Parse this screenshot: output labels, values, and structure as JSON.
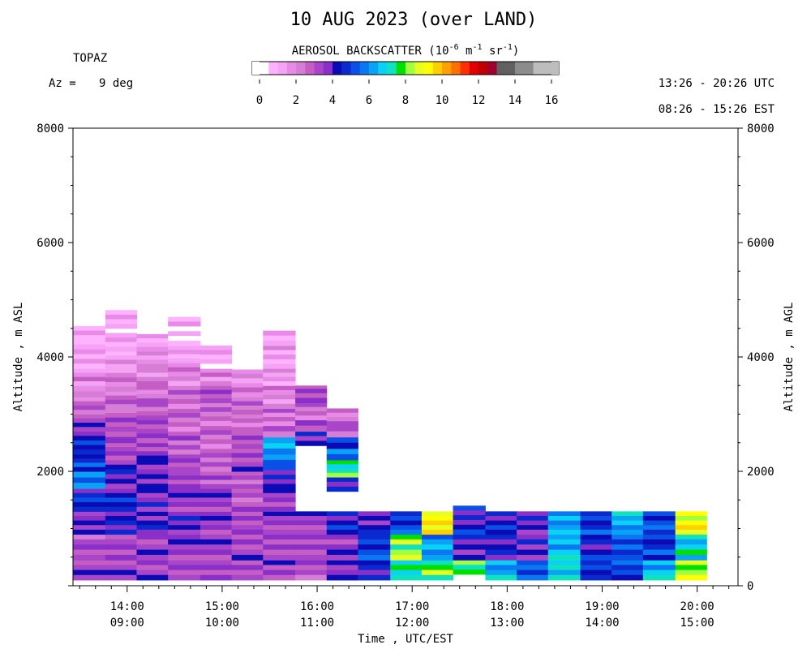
{
  "header": {
    "title": "10 AUG 2023 (over LAND)",
    "instrument": "TOPAZ",
    "azimuth_label": "Az =",
    "azimuth_value": "9 deg",
    "utc_range": "13:26 - 20:26 UTC",
    "est_range": "08:26 - 15:26 EST"
  },
  "colorbar": {
    "title_main": "AEROSOL BACKSCATTER (10",
    "title_exp1": "-6",
    "title_unit_m": " m",
    "title_exp2": "-1",
    "title_unit_sr": " sr",
    "title_exp3": "-1",
    "title_close": ")",
    "tick_labels": [
      "0",
      "2",
      "4",
      "6",
      "8",
      "10",
      "12",
      "14",
      "16"
    ],
    "colors": [
      "#ffffff",
      "#ffb3ff",
      "#f5a3f5",
      "#e88ae8",
      "#d67ed6",
      "#c45ec4",
      "#a845c8",
      "#8a2fc8",
      "#0b0bb5",
      "#0a2ad0",
      "#0b50e6",
      "#0a78f0",
      "#0aa2f5",
      "#0ad2f5",
      "#10e2c0",
      "#00e000",
      "#a0ff40",
      "#e6ff20",
      "#ffff00",
      "#ffd000",
      "#ffa000",
      "#ff7000",
      "#ff3000",
      "#e00000",
      "#c00000",
      "#a00030",
      "#606060",
      "#606060",
      "#8c8c8c",
      "#8c8c8c",
      "#bdbdbd",
      "#bdbdbd"
    ]
  },
  "chart_data": {
    "type": "heatmap",
    "title": "10 AUG 2023 (over LAND)",
    "xlabel": "Time , UTC/EST",
    "ylabel_left": "Altitude , m ASL",
    "ylabel_right": "Altitude , m AGL",
    "x_unit": "hours UTC",
    "xlim": [
      13.43,
      20.43
    ],
    "ylim": [
      0,
      8000
    ],
    "yticks_left": [
      2000,
      4000,
      6000,
      8000
    ],
    "yticks_right": [
      0,
      2000,
      4000,
      6000,
      8000
    ],
    "xticks": [
      {
        "utc": "14:00",
        "est": "09:00",
        "t": 14
      },
      {
        "utc": "15:00",
        "est": "10:00",
        "t": 15
      },
      {
        "utc": "16:00",
        "est": "11:00",
        "t": 16
      },
      {
        "utc": "17:00",
        "est": "12:00",
        "t": 17
      },
      {
        "utc": "18:00",
        "est": "13:00",
        "t": 18
      },
      {
        "utc": "19:00",
        "est": "14:00",
        "t": 19
      },
      {
        "utc": "20:00",
        "est": "15:00",
        "t": 20
      }
    ],
    "columns": [
      {
        "t_start": 13.43,
        "t_end": 13.77,
        "segments": [
          [
            100,
            450,
            3.4
          ],
          [
            450,
            900,
            3.0
          ],
          [
            900,
            1300,
            3.7
          ],
          [
            1300,
            1700,
            4.6
          ],
          [
            1700,
            1900,
            6.0
          ],
          [
            1900,
            2000,
            6.8
          ],
          [
            2000,
            2300,
            4.8
          ],
          [
            2300,
            2700,
            4.4
          ],
          [
            2700,
            3000,
            3.4
          ],
          [
            3000,
            3300,
            2.6
          ],
          [
            3300,
            3500,
            2.3
          ],
          [
            3500,
            3800,
            1.8
          ],
          [
            3800,
            4300,
            1.2
          ],
          [
            4300,
            4620,
            0.9
          ]
        ]
      },
      {
        "t_start": 13.77,
        "t_end": 14.1,
        "segments": [
          [
            100,
            450,
            3.4
          ],
          [
            450,
            900,
            3.2
          ],
          [
            900,
            1300,
            4.2
          ],
          [
            1300,
            1700,
            4.4
          ],
          [
            1700,
            2200,
            4.1
          ],
          [
            2200,
            2500,
            3.2
          ],
          [
            2500,
            2700,
            3.6
          ],
          [
            2700,
            3100,
            2.9
          ],
          [
            3100,
            3400,
            2.6
          ],
          [
            3400,
            3800,
            2.1
          ],
          [
            3800,
            4100,
            1.4
          ],
          [
            4100,
            4500,
            1.1
          ],
          [
            4500,
            4900,
            0.9
          ]
        ]
      },
      {
        "t_start": 14.1,
        "t_end": 14.43,
        "segments": [
          [
            100,
            450,
            3.3
          ],
          [
            450,
            900,
            3.4
          ],
          [
            900,
            1300,
            4.0
          ],
          [
            1300,
            1700,
            3.8
          ],
          [
            1700,
            2200,
            3.7
          ],
          [
            2200,
            2500,
            3.5
          ],
          [
            2500,
            2900,
            3.2
          ],
          [
            2900,
            3200,
            2.7
          ],
          [
            3200,
            3500,
            2.4
          ],
          [
            3500,
            3800,
            2.0
          ],
          [
            3800,
            4100,
            1.7
          ],
          [
            4100,
            4400,
            1.2
          ]
        ]
      },
      {
        "t_start": 14.43,
        "t_end": 14.77,
        "segments": [
          [
            100,
            450,
            3.1
          ],
          [
            450,
            900,
            3.6
          ],
          [
            900,
            1300,
            3.9
          ],
          [
            1300,
            1700,
            3.6
          ],
          [
            1700,
            2000,
            3.2
          ],
          [
            2000,
            2300,
            3.0
          ],
          [
            2300,
            2700,
            2.8
          ],
          [
            2700,
            3100,
            2.6
          ],
          [
            3100,
            3500,
            2.4
          ],
          [
            3500,
            3900,
            1.9
          ],
          [
            3900,
            4200,
            1.1
          ],
          [
            4200,
            4700,
            0.8
          ]
        ]
      },
      {
        "t_start": 14.77,
        "t_end": 15.1,
        "segments": [
          [
            100,
            450,
            3.2
          ],
          [
            450,
            900,
            3.4
          ],
          [
            900,
            1300,
            3.6
          ],
          [
            1300,
            1700,
            3.5
          ],
          [
            1700,
            2000,
            2.8
          ],
          [
            2000,
            2400,
            2.7
          ],
          [
            2400,
            2800,
            2.5
          ],
          [
            2800,
            3200,
            2.4
          ],
          [
            3200,
            3500,
            2.9
          ],
          [
            3500,
            3800,
            1.8
          ],
          [
            3800,
            4200,
            1.1
          ]
        ]
      },
      {
        "t_start": 15.1,
        "t_end": 15.43,
        "segments": [
          [
            100,
            450,
            3.2
          ],
          [
            450,
            900,
            3.3
          ],
          [
            900,
            1300,
            3.2
          ],
          [
            1300,
            1700,
            2.9
          ],
          [
            1700,
            2000,
            3.0
          ],
          [
            2000,
            2400,
            3.3
          ],
          [
            2400,
            2700,
            3.2
          ],
          [
            2700,
            3000,
            2.5
          ],
          [
            3000,
            3300,
            2.8
          ],
          [
            3300,
            3550,
            2.3
          ],
          [
            3550,
            3780,
            2.0
          ]
        ]
      },
      {
        "t_start": 15.43,
        "t_end": 15.77,
        "segments": [
          [
            100,
            450,
            3.3
          ],
          [
            450,
            900,
            3.2
          ],
          [
            900,
            1300,
            3.4
          ],
          [
            1300,
            1700,
            3.5
          ],
          [
            1700,
            2100,
            4.3
          ],
          [
            2100,
            2300,
            5.5
          ],
          [
            2300,
            2500,
            6.0
          ],
          [
            2500,
            2600,
            5.5
          ],
          [
            2600,
            2800,
            2.6
          ],
          [
            2800,
            3100,
            2.3
          ],
          [
            3100,
            3500,
            2.0
          ],
          [
            3500,
            3800,
            1.5
          ],
          [
            3800,
            4200,
            1.3
          ],
          [
            4200,
            4460,
            1.0
          ]
        ]
      },
      {
        "t_start": 15.77,
        "t_end": 16.1,
        "segments": [
          [
            100,
            450,
            3.0
          ],
          [
            450,
            900,
            3.2
          ],
          [
            900,
            1300,
            3.4
          ],
          [
            2450,
            2700,
            3.8
          ],
          [
            2700,
            2900,
            3.0
          ],
          [
            2900,
            3200,
            2.4
          ],
          [
            3200,
            3450,
            3.2
          ],
          [
            3450,
            3500,
            2.0
          ]
        ]
      },
      {
        "t_start": 16.1,
        "t_end": 16.43,
        "segments": [
          [
            100,
            450,
            3.7
          ],
          [
            450,
            900,
            3.5
          ],
          [
            900,
            1300,
            4.4
          ],
          [
            1650,
            1900,
            4.5
          ],
          [
            1900,
            2200,
            7.3
          ],
          [
            2200,
            2400,
            6.1
          ],
          [
            2400,
            2600,
            4.9
          ],
          [
            2600,
            2800,
            2.8
          ],
          [
            2800,
            3100,
            2.4
          ]
        ]
      },
      {
        "t_start": 16.43,
        "t_end": 16.77,
        "segments": [
          [
            100,
            450,
            4.6
          ],
          [
            450,
            900,
            5.1
          ],
          [
            900,
            1300,
            4.1
          ]
        ]
      },
      {
        "t_start": 16.77,
        "t_end": 17.1,
        "segments": [
          [
            100,
            450,
            7.2
          ],
          [
            450,
            900,
            8.2
          ],
          [
            900,
            1300,
            5.0
          ]
        ]
      },
      {
        "t_start": 17.1,
        "t_end": 17.43,
        "segments": [
          [
            100,
            450,
            7.8
          ],
          [
            450,
            900,
            6.0
          ],
          [
            900,
            1300,
            9.2
          ]
        ]
      },
      {
        "t_start": 17.43,
        "t_end": 17.77,
        "segments": [
          [
            200,
            450,
            7.5
          ],
          [
            450,
            900,
            4.1
          ],
          [
            900,
            1400,
            4.3
          ]
        ]
      },
      {
        "t_start": 17.77,
        "t_end": 18.1,
        "segments": [
          [
            100,
            450,
            6.3
          ],
          [
            450,
            900,
            4.2
          ],
          [
            900,
            1300,
            4.4
          ]
        ]
      },
      {
        "t_start": 18.1,
        "t_end": 18.43,
        "segments": [
          [
            100,
            450,
            5.2
          ],
          [
            450,
            900,
            3.8
          ],
          [
            900,
            1300,
            3.9
          ]
        ]
      },
      {
        "t_start": 18.43,
        "t_end": 18.77,
        "segments": [
          [
            100,
            450,
            7.0
          ],
          [
            450,
            900,
            6.5
          ],
          [
            900,
            1300,
            6.2
          ]
        ]
      },
      {
        "t_start": 18.77,
        "t_end": 19.1,
        "segments": [
          [
            100,
            450,
            4.9
          ],
          [
            450,
            900,
            4.4
          ],
          [
            900,
            1300,
            4.9
          ]
        ]
      },
      {
        "t_start": 19.1,
        "t_end": 19.43,
        "segments": [
          [
            100,
            450,
            5.0
          ],
          [
            450,
            900,
            5.2
          ],
          [
            900,
            1300,
            6.4
          ]
        ]
      },
      {
        "t_start": 19.43,
        "t_end": 19.77,
        "segments": [
          [
            100,
            450,
            6.6
          ],
          [
            450,
            900,
            4.8
          ],
          [
            900,
            1300,
            5.0
          ]
        ]
      },
      {
        "t_start": 19.77,
        "t_end": 20.1,
        "segments": [
          [
            100,
            450,
            8.4
          ],
          [
            450,
            900,
            6.8
          ],
          [
            900,
            1300,
            9.0
          ]
        ]
      }
    ]
  }
}
